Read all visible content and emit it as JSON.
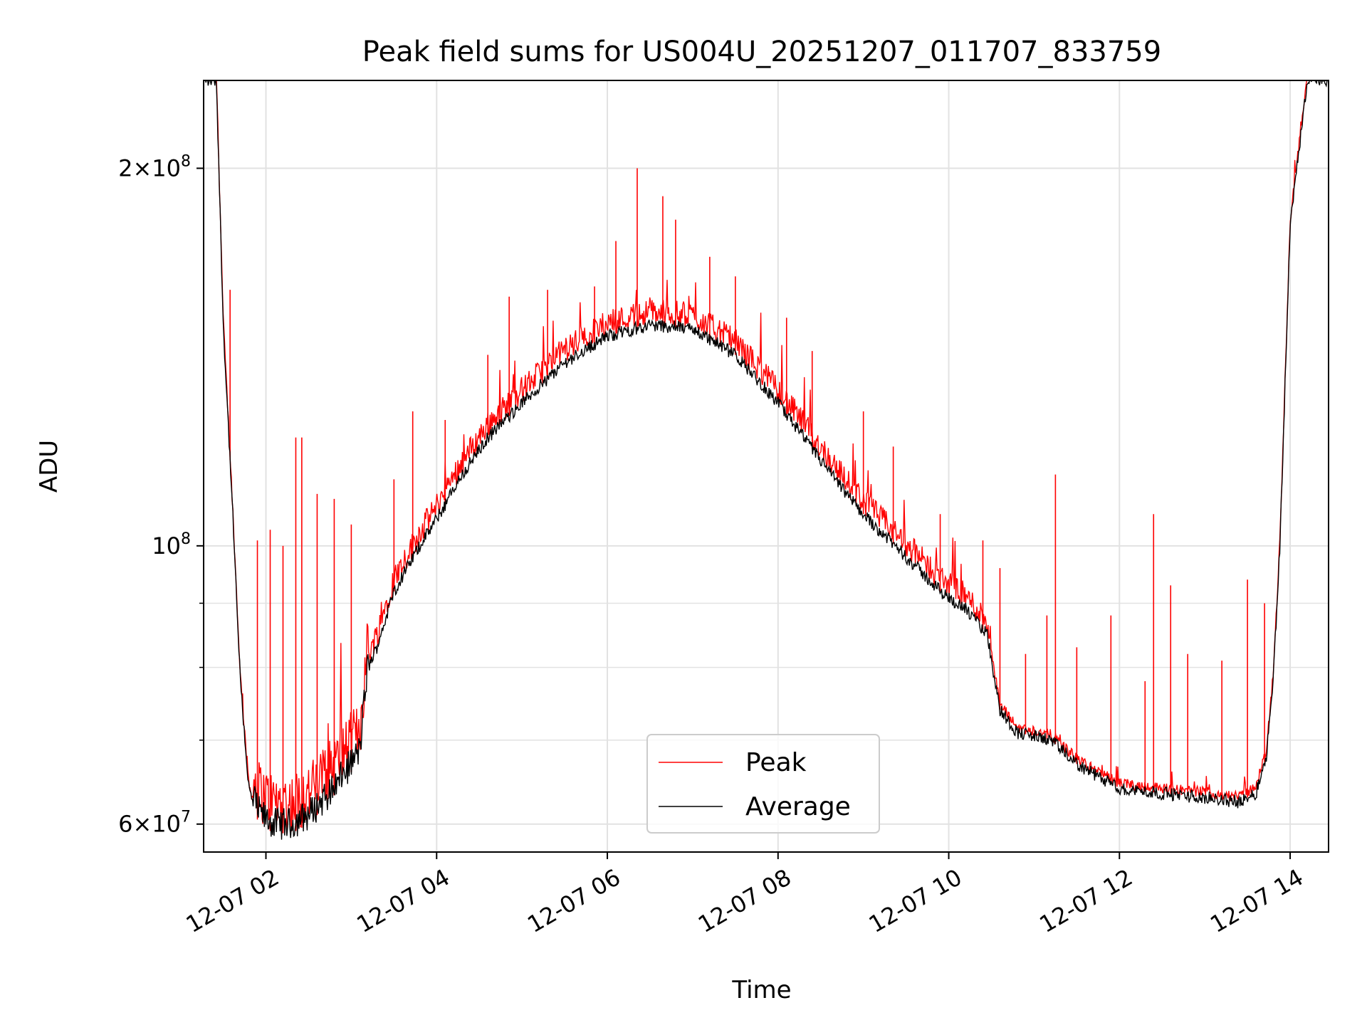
{
  "chart_data": {
    "type": "line",
    "title": "Peak field sums for US004U_20251207_011707_833759",
    "xlabel": "Time",
    "ylabel": "ADU",
    "yscale": "log",
    "xlim": [
      1.27,
      14.45
    ],
    "ylim": [
      57000000,
      235000000
    ],
    "grid": true,
    "legend_position": "lower-center",
    "x_units": "hours since 2025-12-07 00:00",
    "x_ticks": [
      {
        "value": 2,
        "label": "12-07 02"
      },
      {
        "value": 4,
        "label": "12-07 04"
      },
      {
        "value": 6,
        "label": "12-07 06"
      },
      {
        "value": 8,
        "label": "12-07 08"
      },
      {
        "value": 10,
        "label": "12-07 10"
      },
      {
        "value": 12,
        "label": "12-07 12"
      },
      {
        "value": 14,
        "label": "12-07 14"
      }
    ],
    "y_major_ticks": [
      {
        "value": 60000000,
        "mantissa": "6",
        "exponent": "7"
      },
      {
        "value": 100000000,
        "mantissa": "",
        "exponent": "8"
      },
      {
        "value": 200000000,
        "mantissa": "2",
        "exponent": "8"
      }
    ],
    "y_minor_ticks": [
      70000000,
      80000000,
      90000000
    ],
    "average_profile": {
      "x": [
        1.27,
        1.42,
        1.5,
        1.6,
        1.7,
        1.8,
        1.9,
        2.0,
        2.1,
        2.3,
        2.5,
        2.7,
        2.9,
        3.1,
        3.2,
        3.3,
        3.5,
        3.8,
        4.0,
        4.3,
        4.6,
        5.0,
        5.5,
        6.0,
        6.5,
        7.0,
        7.5,
        8.0,
        8.5,
        8.8,
        9.0,
        9.5,
        9.9,
        10.2,
        10.45,
        10.6,
        10.8,
        11.0,
        11.2,
        11.5,
        12.0,
        12.5,
        13.0,
        13.4,
        13.6,
        13.72,
        13.8,
        13.88,
        14.0,
        14.2,
        14.45
      ],
      "y": [
        235000000,
        235000000,
        150000000,
        110000000,
        78000000,
        64000000,
        60500000,
        59500000,
        59000000,
        59000000,
        60000000,
        62000000,
        64500000,
        67500000,
        80000000,
        83000000,
        92000000,
        100000000,
        105000000,
        114000000,
        122000000,
        130000000,
        140000000,
        147000000,
        150000000,
        149000000,
        142000000,
        130000000,
        117000000,
        110000000,
        106000000,
        98000000,
        92000000,
        89000000,
        85000000,
        74000000,
        71000000,
        70500000,
        70000000,
        67000000,
        64000000,
        63500000,
        63000000,
        62500000,
        63500000,
        68000000,
        78000000,
        100000000,
        180000000,
        235000000,
        235000000
      ]
    },
    "series": [
      {
        "name": "Peak",
        "color": "#ff0000",
        "role": "average plus noise and spikes",
        "noise_band": 0.03
      },
      {
        "name": "Average",
        "color": "#000000",
        "role": "average_profile",
        "noise_band": 0.012
      }
    ],
    "peak_spikes": [
      {
        "x": 1.58,
        "y": 160000000
      },
      {
        "x": 1.9,
        "y": 101000000
      },
      {
        "x": 2.05,
        "y": 103000000
      },
      {
        "x": 2.2,
        "y": 100000000
      },
      {
        "x": 2.35,
        "y": 122000000
      },
      {
        "x": 2.42,
        "y": 122000000
      },
      {
        "x": 2.6,
        "y": 110000000
      },
      {
        "x": 2.8,
        "y": 109000000
      },
      {
        "x": 3.0,
        "y": 104000000
      },
      {
        "x": 3.5,
        "y": 113000000
      },
      {
        "x": 3.72,
        "y": 128000000
      },
      {
        "x": 4.1,
        "y": 126000000
      },
      {
        "x": 4.6,
        "y": 142000000
      },
      {
        "x": 4.85,
        "y": 158000000
      },
      {
        "x": 5.3,
        "y": 160000000
      },
      {
        "x": 5.85,
        "y": 161000000
      },
      {
        "x": 6.1,
        "y": 175000000
      },
      {
        "x": 6.35,
        "y": 200000000
      },
      {
        "x": 6.65,
        "y": 190000000
      },
      {
        "x": 6.8,
        "y": 182000000
      },
      {
        "x": 7.2,
        "y": 170000000
      },
      {
        "x": 7.5,
        "y": 164000000
      },
      {
        "x": 8.1,
        "y": 152000000
      },
      {
        "x": 8.4,
        "y": 143000000
      },
      {
        "x": 9.0,
        "y": 128000000
      },
      {
        "x": 9.35,
        "y": 120000000
      },
      {
        "x": 9.9,
        "y": 106000000
      },
      {
        "x": 10.4,
        "y": 101000000
      },
      {
        "x": 10.6,
        "y": 96000000
      },
      {
        "x": 10.9,
        "y": 82000000
      },
      {
        "x": 11.15,
        "y": 88000000
      },
      {
        "x": 11.25,
        "y": 114000000
      },
      {
        "x": 11.5,
        "y": 83000000
      },
      {
        "x": 11.9,
        "y": 88000000
      },
      {
        "x": 12.3,
        "y": 78000000
      },
      {
        "x": 12.4,
        "y": 106000000
      },
      {
        "x": 12.6,
        "y": 93000000
      },
      {
        "x": 12.8,
        "y": 82000000
      },
      {
        "x": 13.2,
        "y": 81000000
      },
      {
        "x": 13.5,
        "y": 94000000
      },
      {
        "x": 13.7,
        "y": 90000000
      }
    ],
    "legend": [
      {
        "label": "Peak",
        "color": "#ff0000"
      },
      {
        "label": "Average",
        "color": "#000000"
      }
    ]
  }
}
